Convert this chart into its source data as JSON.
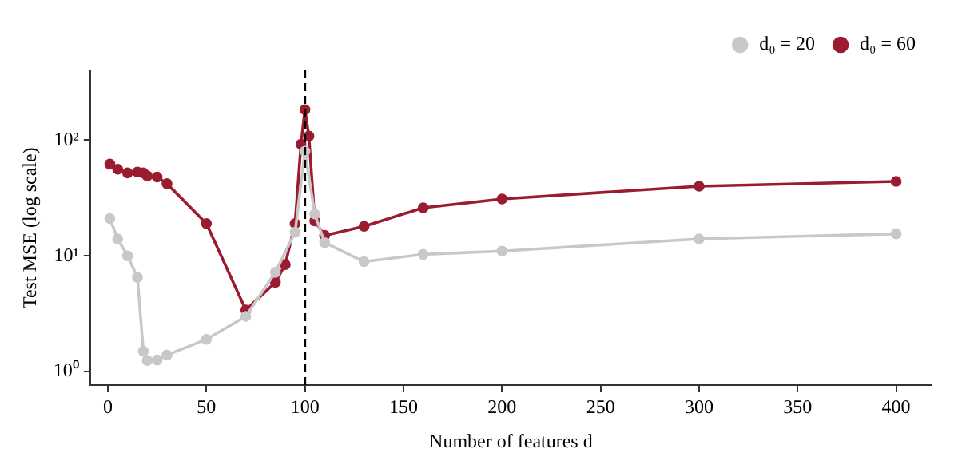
{
  "chart_data": {
    "type": "line",
    "xlabel": "Number of features d",
    "ylabel": "Test MSE (log scale)",
    "xlim": [
      -9,
      418
    ],
    "xticks": [
      0,
      50,
      100,
      150,
      200,
      250,
      300,
      350,
      400
    ],
    "ylim": [
      0.76,
      400
    ],
    "yticks": [
      {
        "value": 1,
        "label": "10⁰"
      },
      {
        "value": 10,
        "label": "10¹"
      },
      {
        "value": 100,
        "label": "10²"
      }
    ],
    "log": "y",
    "grid": false,
    "legend": "top right",
    "marker": "circle",
    "line_style": "solid",
    "ref_lines": [
      {
        "axis": "x",
        "value": 100,
        "label": null,
        "color": "#000000",
        "line_style": "dashed"
      }
    ],
    "series": [
      {
        "name": "d₀ = 20",
        "color": "#c8c8c8",
        "x": [
          1,
          5,
          10,
          15,
          18,
          20,
          25,
          30,
          50,
          70,
          85,
          95,
          100,
          105,
          110,
          130,
          160,
          200,
          300,
          400
        ],
        "values": [
          21,
          14,
          10,
          6.5,
          1.5,
          1.25,
          1.26,
          1.39,
          1.9,
          3.0,
          7.2,
          16,
          80,
          23,
          13,
          8.9,
          10.3,
          11,
          14,
          15.5
        ]
      },
      {
        "name": "d₀ = 60",
        "color": "#9b1b30",
        "x": [
          1,
          5,
          10,
          15,
          18,
          20,
          25,
          30,
          50,
          70,
          85,
          90,
          95,
          98,
          100,
          102,
          105,
          110,
          130,
          160,
          200,
          300,
          400
        ],
        "values": [
          62,
          56,
          52,
          53,
          52,
          49,
          48,
          42,
          19,
          3.4,
          5.9,
          8.4,
          19,
          92,
          183,
          108,
          20,
          15,
          18,
          26,
          31,
          40,
          44
        ]
      }
    ]
  }
}
